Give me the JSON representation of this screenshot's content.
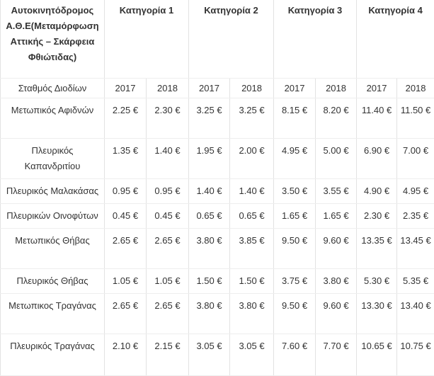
{
  "table": {
    "header": {
      "title": "Αυτοκινητόδρομος Α.Θ.Ε(Μεταμόρφωση Αττικής – Σκάρφεια Φθιώτιδας)",
      "categories": [
        "Κατηγορία  1",
        "Κατηγορία 2",
        "Κατηγορία 3",
        "Κατηγορία 4"
      ]
    },
    "subheader": [
      "Σταθμός Διοδίων",
      "2017",
      "2018",
      "2017",
      "2018",
      "2017",
      "2018",
      "2017",
      "2018"
    ],
    "rows": [
      [
        "Μετωπικός Αφιδνών",
        "2.25 €",
        "2.30 €",
        "3.25 €",
        "3.25 €",
        "8.15 €",
        "8.20 €",
        "11.40 €",
        "11.50 €"
      ],
      [
        "Πλευρικός Καπανδριτίου",
        "1.35 €",
        "1.40 €",
        "1.95 €",
        "2.00 €",
        "4.95 €",
        "5.00 €",
        "6.90 €",
        "7.00 €"
      ],
      [
        "Πλευρικός Μαλακάσας",
        "0.95 €",
        "0.95 €",
        "1.40 €",
        "1.40 €",
        "3.50 €",
        "3.55 €",
        "4.90 €",
        "4.95 €"
      ],
      [
        "Πλευρικών Οινοφύτων",
        "0.45 €",
        "0.45 €",
        "0.65 €",
        "0.65 €",
        "1.65 €",
        "1.65 €",
        "2.30 €",
        "2.35 €"
      ],
      [
        "Μετωπικός Θήβας",
        "2.65 €",
        "2.65 €",
        "3.80 €",
        "3.85 €",
        "9.50 €",
        "9.60 €",
        "13.35 €",
        "13.45 €"
      ],
      [
        "Πλευρικός Θήβας",
        "1.05 €",
        "1.05 €",
        "1.50 €",
        "1.50 €",
        "3.75 €",
        "3.80 €",
        "5.30 €",
        "5.35 €"
      ],
      [
        "Μετωπικος Τραγάνας",
        "2.65 €",
        "2.65 €",
        "3.80 €",
        "3.80 €",
        "9.50 €",
        "9.60 €",
        "13.30 €",
        "13.40 €"
      ],
      [
        "Πλευρικός Τραγάνας",
        "2.10 €",
        "2.15 €",
        "3.05 €",
        "3.05 €",
        "7.60 €",
        "7.70 €",
        "10.65 €",
        "10.75 €"
      ]
    ]
  }
}
